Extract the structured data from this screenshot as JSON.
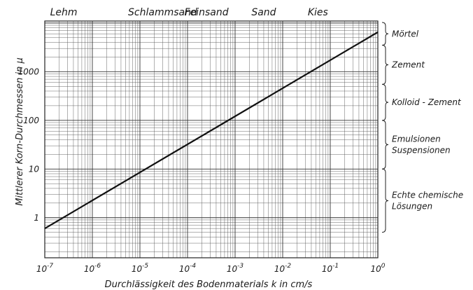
{
  "chart_data": {
    "type": "line",
    "xscale": "log",
    "yscale": "log",
    "xlim": [
      1e-07,
      1
    ],
    "ylim": [
      0.15,
      11000
    ],
    "grid": true,
    "xlabel": "Durchlässigkeit des Bodenmaterials k in cm/s",
    "ylabel": "Mittlerer Korn-Durchmessen in μ",
    "x_ticks": [
      {
        "value": 1e-07,
        "base": "10",
        "exp": "-7"
      },
      {
        "value": 1e-06,
        "base": "10",
        "exp": "-6"
      },
      {
        "value": 1e-05,
        "base": "10",
        "exp": "-5"
      },
      {
        "value": 0.0001,
        "base": "10",
        "exp": "-4"
      },
      {
        "value": 0.001,
        "base": "10",
        "exp": "-3"
      },
      {
        "value": 0.01,
        "base": "10",
        "exp": "-2"
      },
      {
        "value": 0.1,
        "base": "10",
        "exp": "-1"
      },
      {
        "value": 1,
        "base": "10",
        "exp": "0"
      }
    ],
    "y_ticks": [
      {
        "value": 1,
        "label": "1"
      },
      {
        "value": 10,
        "label": "10"
      },
      {
        "value": 100,
        "label": "100"
      },
      {
        "value": 1000,
        "label": "1000"
      }
    ],
    "series": [
      {
        "points": [
          [
            1e-07,
            0.6
          ],
          [
            1,
            6500
          ]
        ]
      }
    ],
    "top_labels": [
      {
        "label": "Lehm",
        "x": 2.5e-07
      },
      {
        "label": "Schlammsand",
        "x": 3e-05
      },
      {
        "label": "Feinsand",
        "x": 0.00025
      },
      {
        "label": "Sand",
        "x": 0.004
      },
      {
        "label": "Kies",
        "x": 0.055
      }
    ],
    "right_brackets": [
      {
        "lines": [
          "Mörtel"
        ],
        "y_from": 3500,
        "y_to": 11000
      },
      {
        "lines": [
          "Zement"
        ],
        "y_from": 550,
        "y_to": 3500
      },
      {
        "lines": [
          "Kolloid - Zement"
        ],
        "y_from": 100,
        "y_to": 550
      },
      {
        "lines": [
          "Emulsionen",
          "Suspensionen"
        ],
        "y_from": 10,
        "y_to": 100
      },
      {
        "lines": [
          "Echte chemische",
          "Lösungen"
        ],
        "y_from": 0.5,
        "y_to": 10
      }
    ]
  }
}
